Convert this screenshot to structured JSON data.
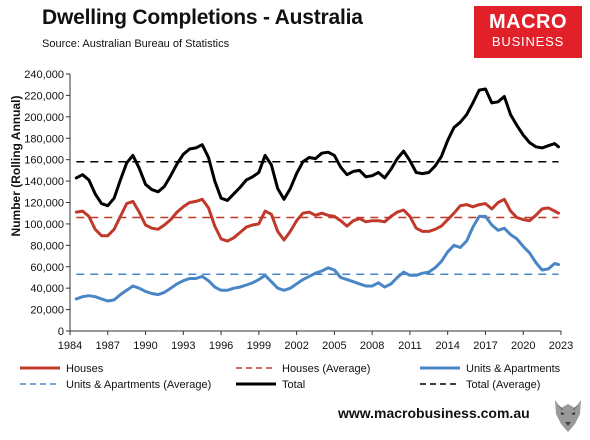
{
  "title": "Dwelling Completions - Australia",
  "subtitle": "Source: Australian Bureau of Statistics",
  "logo": {
    "line1": "MACRO",
    "line2": "BUSINESS",
    "color": "#e2202a"
  },
  "footer_url": "www.macrobusiness.com.au",
  "chart_data": {
    "type": "line",
    "ylabel": "Number (Rolling Annual)",
    "ylim": [
      0,
      240000
    ],
    "yticks": [
      0,
      20000,
      40000,
      60000,
      80000,
      100000,
      120000,
      140000,
      160000,
      180000,
      200000,
      220000,
      240000
    ],
    "ytick_labels": [
      "0",
      "20,000",
      "40,000",
      "60,000",
      "80,000",
      "100,000",
      "120,000",
      "140,000",
      "160,000",
      "180,000",
      "200,000",
      "220,000",
      "240,000"
    ],
    "xlim": [
      1984,
      2023
    ],
    "xticks": [
      1984,
      1987,
      1990,
      1993,
      1996,
      1999,
      2002,
      2005,
      2008,
      2011,
      2014,
      2017,
      2020,
      2023
    ],
    "grid": false,
    "legend_position": "bottom",
    "series": [
      {
        "name": "Houses",
        "color": "#c0392b",
        "style": "solid",
        "width": 3,
        "points": [
          [
            1984.5,
            111000
          ],
          [
            1985,
            112000
          ],
          [
            1985.5,
            107000
          ],
          [
            1986,
            95000
          ],
          [
            1986.5,
            89000
          ],
          [
            1987,
            89000
          ],
          [
            1987.5,
            95000
          ],
          [
            1988,
            107000
          ],
          [
            1988.5,
            119000
          ],
          [
            1989,
            121000
          ],
          [
            1989.5,
            111000
          ],
          [
            1990,
            99000
          ],
          [
            1990.5,
            96000
          ],
          [
            1991,
            95000
          ],
          [
            1991.5,
            99000
          ],
          [
            1992,
            104000
          ],
          [
            1992.5,
            111000
          ],
          [
            1993,
            116000
          ],
          [
            1993.5,
            120000
          ],
          [
            1994,
            121000
          ],
          [
            1994.5,
            123000
          ],
          [
            1995,
            115000
          ],
          [
            1995.5,
            98000
          ],
          [
            1996,
            86000
          ],
          [
            1996.5,
            84000
          ],
          [
            1997,
            87000
          ],
          [
            1997.5,
            92000
          ],
          [
            1998,
            97000
          ],
          [
            1998.5,
            99000
          ],
          [
            1999,
            100000
          ],
          [
            1999.5,
            112000
          ],
          [
            2000,
            109000
          ],
          [
            2000.5,
            93000
          ],
          [
            2001,
            85000
          ],
          [
            2001.5,
            93000
          ],
          [
            2002,
            103000
          ],
          [
            2002.5,
            110000
          ],
          [
            2003,
            111000
          ],
          [
            2003.5,
            108000
          ],
          [
            2004,
            110000
          ],
          [
            2004.5,
            108000
          ],
          [
            2005,
            107000
          ],
          [
            2005.5,
            103000
          ],
          [
            2006,
            98000
          ],
          [
            2006.5,
            103000
          ],
          [
            2007,
            105000
          ],
          [
            2007.5,
            102000
          ],
          [
            2008,
            103000
          ],
          [
            2008.5,
            103000
          ],
          [
            2009,
            102000
          ],
          [
            2009.5,
            107000
          ],
          [
            2010,
            111000
          ],
          [
            2010.5,
            113000
          ],
          [
            2011,
            107000
          ],
          [
            2011.5,
            96000
          ],
          [
            2012,
            93000
          ],
          [
            2012.5,
            93000
          ],
          [
            2013,
            95000
          ],
          [
            2013.5,
            98000
          ],
          [
            2014,
            104000
          ],
          [
            2014.5,
            110000
          ],
          [
            2015,
            117000
          ],
          [
            2015.5,
            118000
          ],
          [
            2016,
            116000
          ],
          [
            2016.5,
            118000
          ],
          [
            2017,
            119000
          ],
          [
            2017.5,
            114000
          ],
          [
            2018,
            120000
          ],
          [
            2018.5,
            123000
          ],
          [
            2019,
            112000
          ],
          [
            2019.5,
            106000
          ],
          [
            2020,
            104000
          ],
          [
            2020.5,
            103000
          ],
          [
            2021,
            108000
          ],
          [
            2021.5,
            114000
          ],
          [
            2022,
            115000
          ],
          [
            2022.5,
            112000
          ],
          [
            2022.8,
            110000
          ]
        ]
      },
      {
        "name": "Houses (Average)",
        "color": "#c0392b",
        "style": "dashed",
        "width": 1.5,
        "points": [
          [
            1984.5,
            106000
          ],
          [
            2022.8,
            106000
          ]
        ]
      },
      {
        "name": "Units & Apartments",
        "color": "#4a86c5",
        "style": "solid",
        "width": 3,
        "points": [
          [
            1984.5,
            30000
          ],
          [
            1985,
            32000
          ],
          [
            1985.5,
            33000
          ],
          [
            1986,
            32000
          ],
          [
            1986.5,
            30000
          ],
          [
            1987,
            28000
          ],
          [
            1987.5,
            29000
          ],
          [
            1988,
            34000
          ],
          [
            1988.5,
            38000
          ],
          [
            1989,
            42000
          ],
          [
            1989.5,
            40000
          ],
          [
            1990,
            37000
          ],
          [
            1990.5,
            35000
          ],
          [
            1991,
            34000
          ],
          [
            1991.5,
            36000
          ],
          [
            1992,
            40000
          ],
          [
            1992.5,
            44000
          ],
          [
            1993,
            47000
          ],
          [
            1993.5,
            49000
          ],
          [
            1994,
            49000
          ],
          [
            1994.5,
            51000
          ],
          [
            1995,
            47000
          ],
          [
            1995.5,
            41000
          ],
          [
            1996,
            38000
          ],
          [
            1996.5,
            38000
          ],
          [
            1997,
            40000
          ],
          [
            1997.5,
            41000
          ],
          [
            1998,
            43000
          ],
          [
            1998.5,
            45000
          ],
          [
            1999,
            48000
          ],
          [
            1999.5,
            52000
          ],
          [
            2000,
            46000
          ],
          [
            2000.5,
            40000
          ],
          [
            2001,
            38000
          ],
          [
            2001.5,
            40000
          ],
          [
            2002,
            44000
          ],
          [
            2002.5,
            48000
          ],
          [
            2003,
            51000
          ],
          [
            2003.5,
            54000
          ],
          [
            2004,
            56000
          ],
          [
            2004.5,
            59000
          ],
          [
            2005,
            57000
          ],
          [
            2005.5,
            50000
          ],
          [
            2006,
            48000
          ],
          [
            2006.5,
            46000
          ],
          [
            2007,
            44000
          ],
          [
            2007.5,
            42000
          ],
          [
            2008,
            42000
          ],
          [
            2008.5,
            45000
          ],
          [
            2009,
            41000
          ],
          [
            2009.5,
            44000
          ],
          [
            2010,
            50000
          ],
          [
            2010.5,
            55000
          ],
          [
            2011,
            52000
          ],
          [
            2011.5,
            52000
          ],
          [
            2012,
            54000
          ],
          [
            2012.5,
            55000
          ],
          [
            2013,
            59000
          ],
          [
            2013.5,
            65000
          ],
          [
            2014,
            74000
          ],
          [
            2014.5,
            80000
          ],
          [
            2015,
            78000
          ],
          [
            2015.5,
            84000
          ],
          [
            2016,
            97000
          ],
          [
            2016.5,
            107000
          ],
          [
            2017,
            107000
          ],
          [
            2017.5,
            99000
          ],
          [
            2018,
            94000
          ],
          [
            2018.5,
            96000
          ],
          [
            2019,
            90000
          ],
          [
            2019.5,
            86000
          ],
          [
            2020,
            79000
          ],
          [
            2020.5,
            73000
          ],
          [
            2021,
            64000
          ],
          [
            2021.5,
            57000
          ],
          [
            2022,
            58000
          ],
          [
            2022.5,
            63000
          ],
          [
            2022.8,
            62000
          ]
        ]
      },
      {
        "name": "Units & Apartments (Average)",
        "color": "#4a86c5",
        "style": "dashed",
        "width": 1.5,
        "points": [
          [
            1984.5,
            53000
          ],
          [
            2022.8,
            53000
          ]
        ]
      },
      {
        "name": "Total",
        "color": "#000000",
        "style": "solid",
        "width": 3,
        "points": [
          [
            1984.5,
            143000
          ],
          [
            1985,
            146000
          ],
          [
            1985.5,
            141000
          ],
          [
            1986,
            128000
          ],
          [
            1986.5,
            119000
          ],
          [
            1987,
            117000
          ],
          [
            1987.5,
            124000
          ],
          [
            1988,
            141000
          ],
          [
            1988.5,
            157000
          ],
          [
            1989,
            164000
          ],
          [
            1989.5,
            152000
          ],
          [
            1990,
            137000
          ],
          [
            1990.5,
            132000
          ],
          [
            1991,
            130000
          ],
          [
            1991.5,
            135000
          ],
          [
            1992,
            145000
          ],
          [
            1992.5,
            156000
          ],
          [
            1993,
            165000
          ],
          [
            1993.5,
            170000
          ],
          [
            1994,
            171000
          ],
          [
            1994.5,
            174000
          ],
          [
            1995,
            162000
          ],
          [
            1995.5,
            140000
          ],
          [
            1996,
            124000
          ],
          [
            1996.5,
            122000
          ],
          [
            1997,
            128000
          ],
          [
            1997.5,
            134000
          ],
          [
            1998,
            141000
          ],
          [
            1998.5,
            144000
          ],
          [
            1999,
            148000
          ],
          [
            1999.5,
            164000
          ],
          [
            2000,
            155000
          ],
          [
            2000.5,
            133000
          ],
          [
            2001,
            123000
          ],
          [
            2001.5,
            133000
          ],
          [
            2002,
            147000
          ],
          [
            2002.5,
            158000
          ],
          [
            2003,
            162000
          ],
          [
            2003.5,
            161000
          ],
          [
            2004,
            166000
          ],
          [
            2004.5,
            167000
          ],
          [
            2005,
            164000
          ],
          [
            2005.5,
            153000
          ],
          [
            2006,
            146000
          ],
          [
            2006.5,
            149000
          ],
          [
            2007,
            150000
          ],
          [
            2007.5,
            144000
          ],
          [
            2008,
            145000
          ],
          [
            2008.5,
            148000
          ],
          [
            2009,
            143000
          ],
          [
            2009.5,
            151000
          ],
          [
            2010,
            161000
          ],
          [
            2010.5,
            168000
          ],
          [
            2011,
            159000
          ],
          [
            2011.5,
            148000
          ],
          [
            2012,
            147000
          ],
          [
            2012.5,
            148000
          ],
          [
            2013,
            154000
          ],
          [
            2013.5,
            163000
          ],
          [
            2014,
            178000
          ],
          [
            2014.5,
            190000
          ],
          [
            2015,
            195000
          ],
          [
            2015.5,
            202000
          ],
          [
            2016,
            213000
          ],
          [
            2016.5,
            225000
          ],
          [
            2017,
            226000
          ],
          [
            2017.5,
            213000
          ],
          [
            2018,
            214000
          ],
          [
            2018.5,
            219000
          ],
          [
            2019,
            202000
          ],
          [
            2019.5,
            192000
          ],
          [
            2020,
            183000
          ],
          [
            2020.5,
            176000
          ],
          [
            2021,
            172000
          ],
          [
            2021.5,
            171000
          ],
          [
            2022,
            173000
          ],
          [
            2022.5,
            175000
          ],
          [
            2022.8,
            172000
          ]
        ]
      },
      {
        "name": "Total (Average)",
        "color": "#000000",
        "style": "dashed",
        "width": 1.5,
        "points": [
          [
            1984.5,
            158000
          ],
          [
            2022.8,
            158000
          ]
        ]
      }
    ]
  },
  "legend": [
    {
      "label": "Houses",
      "color": "#c0392b",
      "style": "solid"
    },
    {
      "label": "Houses (Average)",
      "color": "#c0392b",
      "style": "dashed"
    },
    {
      "label": "Units & Apartments",
      "color": "#4a86c5",
      "style": "solid"
    },
    {
      "label": "Units & Apartments (Average)",
      "color": "#4a86c5",
      "style": "dashed"
    },
    {
      "label": "Total",
      "color": "#000000",
      "style": "solid"
    },
    {
      "label": "Total (Average)",
      "color": "#000000",
      "style": "dashed"
    }
  ]
}
